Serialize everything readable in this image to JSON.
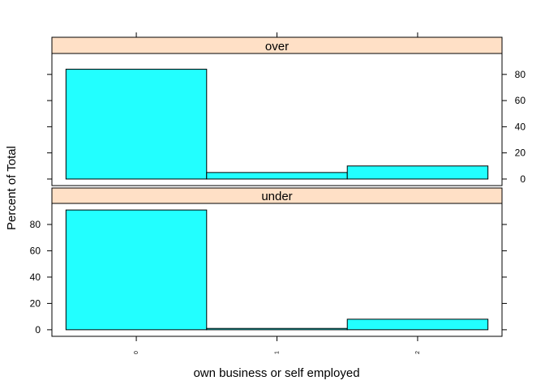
{
  "chart_data": {
    "type": "bar",
    "xlabel": "own business or self employed",
    "ylabel": "Percent of Total",
    "categories": [
      "0",
      "1",
      "2"
    ],
    "ylim": [
      -5,
      96
    ],
    "yticks": [
      0,
      20,
      40,
      60,
      80
    ],
    "panels": [
      {
        "strip_label": "over",
        "values": [
          84,
          5,
          10
        ],
        "y_axis_labels_side": "right"
      },
      {
        "strip_label": "under",
        "values": [
          91,
          1,
          8
        ],
        "y_axis_labels_side": "left"
      }
    ],
    "colors": {
      "bar_fill": "#22ffff",
      "strip_fill": "#ffe0c6",
      "outline": "#000000"
    },
    "grid": false,
    "legend": "none"
  }
}
